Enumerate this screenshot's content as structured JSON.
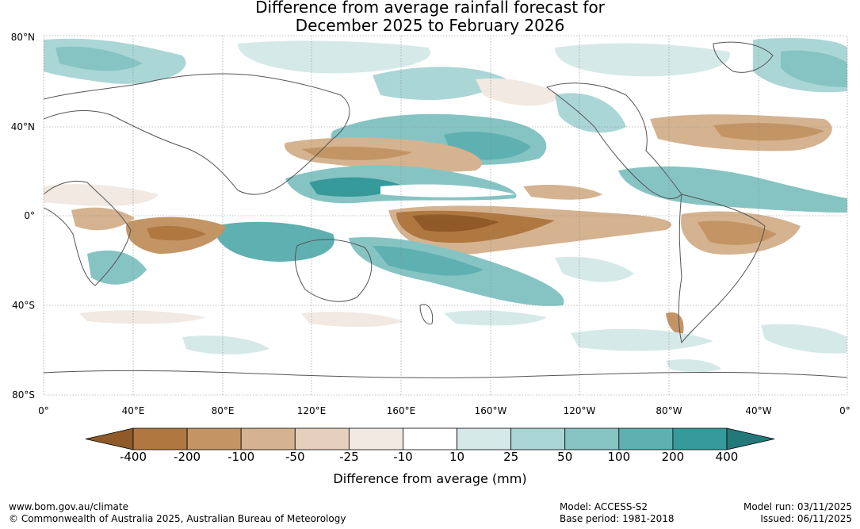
{
  "title_line1": "Difference from average rainfall forecast for",
  "title_line2": "December 2025 to February 2026",
  "lat_labels": [
    "80°N",
    "40°N",
    "0°",
    "40°S",
    "80°S"
  ],
  "lon_labels": [
    "0°",
    "40°E",
    "80°E",
    "120°E",
    "160°E",
    "160°W",
    "120°W",
    "80°W",
    "40°W",
    "0°"
  ],
  "legend": {
    "ticks": [
      "-400",
      "-200",
      "-100",
      "-50",
      "-25",
      "-10",
      "10",
      "25",
      "50",
      "100",
      "200",
      "400"
    ],
    "colors": [
      "#8f5a27",
      "#b07841",
      "#c39565",
      "#d5b390",
      "#e4d0bd",
      "#f1e9e2",
      "#ffffff",
      "#d5e9e8",
      "#abd6d6",
      "#86c4c4",
      "#5fb0b1",
      "#36999a",
      "#23787a"
    ],
    "title": "Difference from average (mm)"
  },
  "footer": {
    "site": "www.bom.gov.au/climate",
    "copyright": "© Commonwealth of Australia 2025, Australian Bureau of Meteorology",
    "model": "Model: ACCESS-S2",
    "base_period": "Base period: 1981-2018",
    "model_run": "Model run: 03/11/2025",
    "issued": "Issued: 06/11/2025"
  }
}
